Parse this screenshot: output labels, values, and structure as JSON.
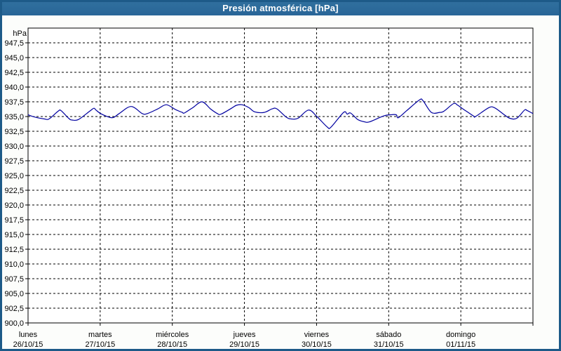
{
  "window": {
    "title": "Presión atmosférica [hPa]"
  },
  "colors": {
    "titlebar_bg": "#2b6a9b",
    "titlebar_text": "#ffffff",
    "frame_border": "#1d5a88",
    "background": "#fcfdfb",
    "plot_bg": "#ffffff",
    "plot_border": "#000000",
    "grid": "#000000",
    "line": "#0000a0",
    "label_text": "#000000"
  },
  "chart_data": {
    "type": "line",
    "title": "Presión atmosférica [hPa]",
    "ylabel": "hPa",
    "ylim": [
      900,
      950
    ],
    "ytick_step": 2.5,
    "ytick_labels": [
      "947,5",
      "945,0",
      "942,5",
      "940,0",
      "937,5",
      "935,0",
      "932,5",
      "930,0",
      "927,5",
      "925,0",
      "922,5",
      "920,0",
      "917,5",
      "915,0",
      "912,5",
      "910,0",
      "907,5",
      "905,0",
      "902,5",
      "900,0"
    ],
    "xlim_hours": [
      0,
      168
    ],
    "hours_per_day": 24,
    "x_days": [
      {
        "name": "lunes",
        "date": "26/10/15"
      },
      {
        "name": "martes",
        "date": "27/10/15"
      },
      {
        "name": "miércoles",
        "date": "28/10/15"
      },
      {
        "name": "jueves",
        "date": "29/10/15"
      },
      {
        "name": "viernes",
        "date": "30/10/15"
      },
      {
        "name": "sábado",
        "date": "31/10/15"
      },
      {
        "name": "domingo",
        "date": "01/11/15"
      }
    ],
    "grid": "dashed",
    "legend": "none",
    "series": [
      {
        "name": "Presión atmosférica",
        "points": [
          [
            0.0,
            935.3
          ],
          [
            2.3,
            934.9
          ],
          [
            5.4,
            934.6
          ],
          [
            7.0,
            934.6
          ],
          [
            10.0,
            935.9
          ],
          [
            11.0,
            936.0
          ],
          [
            13.5,
            934.7
          ],
          [
            14.7,
            934.4
          ],
          [
            16.8,
            934.5
          ],
          [
            20.5,
            935.9
          ],
          [
            21.9,
            936.4
          ],
          [
            22.6,
            936.1
          ],
          [
            24.5,
            935.4
          ],
          [
            28.0,
            934.8
          ],
          [
            30.3,
            935.5
          ],
          [
            34.3,
            936.7
          ],
          [
            38.0,
            935.5
          ],
          [
            39.7,
            935.5
          ],
          [
            43.2,
            936.3
          ],
          [
            46.0,
            937.0
          ],
          [
            49.0,
            936.2
          ],
          [
            51.3,
            935.7
          ],
          [
            52.0,
            935.6
          ],
          [
            54.8,
            936.5
          ],
          [
            57.9,
            937.5
          ],
          [
            60.7,
            936.3
          ],
          [
            63.0,
            935.5
          ],
          [
            64.2,
            935.4
          ],
          [
            67.7,
            936.4
          ],
          [
            69.3,
            936.9
          ],
          [
            71.2,
            937.0
          ],
          [
            73.5,
            936.5
          ],
          [
            75.4,
            935.8
          ],
          [
            78.6,
            935.7
          ],
          [
            81.2,
            936.3
          ],
          [
            82.8,
            936.3
          ],
          [
            85.9,
            934.9
          ],
          [
            87.5,
            934.6
          ],
          [
            89.8,
            934.7
          ],
          [
            93.3,
            936.1
          ],
          [
            96.1,
            935.0
          ],
          [
            99.6,
            933.2
          ],
          [
            100.8,
            933.2
          ],
          [
            105.0,
            935.7
          ],
          [
            106.2,
            935.4
          ],
          [
            107.3,
            935.6
          ],
          [
            109.7,
            934.5
          ],
          [
            112.0,
            934.1
          ],
          [
            113.6,
            934.1
          ],
          [
            118.3,
            935.1
          ],
          [
            120.6,
            935.3
          ],
          [
            122.5,
            935.3
          ],
          [
            123.2,
            934.8
          ],
          [
            126.0,
            936.0
          ],
          [
            130.2,
            937.8
          ],
          [
            131.4,
            937.7
          ],
          [
            134.2,
            935.7
          ],
          [
            137.0,
            935.7
          ],
          [
            138.4,
            935.9
          ],
          [
            141.6,
            937.2
          ],
          [
            143.0,
            936.9
          ],
          [
            144.7,
            936.3
          ],
          [
            148.2,
            935.1
          ],
          [
            148.9,
            935.0
          ],
          [
            153.3,
            936.5
          ],
          [
            155.2,
            936.5
          ],
          [
            158.2,
            935.4
          ],
          [
            160.3,
            934.7
          ],
          [
            162.6,
            934.7
          ],
          [
            165.2,
            936.1
          ],
          [
            166.1,
            936.0
          ],
          [
            168.0,
            935.5
          ]
        ]
      }
    ]
  }
}
